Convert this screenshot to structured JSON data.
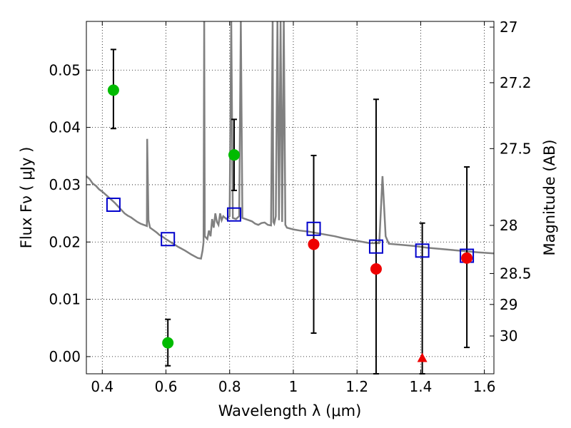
{
  "chart_data": {
    "type": "scatter",
    "title": "",
    "xlabel": "Wavelength  λ (μm)",
    "ylabel": "Flux  Fν  ( μJy )",
    "ylabel_right": "Magnitude (AB)",
    "xlim": [
      0.35,
      1.63
    ],
    "ylim": [
      -0.003,
      0.0585
    ],
    "grid": true,
    "x_ticks": [
      {
        "value": 0.4,
        "label": "0.4"
      },
      {
        "value": 0.6,
        "label": "0.6"
      },
      {
        "value": 0.8,
        "label": "0.8"
      },
      {
        "value": 1.0,
        "label": "1"
      },
      {
        "value": 1.2,
        "label": "1.2"
      },
      {
        "value": 1.4,
        "label": "1.4"
      },
      {
        "value": 1.6,
        "label": "1.6"
      }
    ],
    "y_ticks": [
      {
        "value": 0.0,
        "label": "0.00"
      },
      {
        "value": 0.01,
        "label": "0.01"
      },
      {
        "value": 0.02,
        "label": "0.02"
      },
      {
        "value": 0.03,
        "label": "0.03"
      },
      {
        "value": 0.04,
        "label": "0.04"
      },
      {
        "value": 0.05,
        "label": "0.05"
      }
    ],
    "magnitude_ticks": [
      {
        "label": "27",
        "flux": 0.0575
      },
      {
        "label": "27.2",
        "flux": 0.0478
      },
      {
        "label": "27.5",
        "flux": 0.0363
      },
      {
        "label": "28",
        "flux": 0.0229
      },
      {
        "label": "28.5",
        "flux": 0.0145
      },
      {
        "label": "29",
        "flux": 0.0091
      },
      {
        "label": "30",
        "flux": 0.0036
      }
    ],
    "observed": {
      "color": "#00bb00",
      "points": [
        {
          "x": 0.435,
          "y": 0.0465,
          "err_low": 0.0398,
          "err_high": 0.0536
        },
        {
          "x": 0.606,
          "y": 0.0024,
          "err_low": -0.0016,
          "err_high": 0.0065
        },
        {
          "x": 0.814,
          "y": 0.0352,
          "err_low": 0.029,
          "err_high": 0.0414
        }
      ]
    },
    "nir_observed": {
      "color": "#ee0000",
      "points": [
        {
          "x": 1.064,
          "y": 0.0196,
          "err_low": 0.0041,
          "err_high": 0.0351
        },
        {
          "x": 1.26,
          "y": 0.0153,
          "err_low": -0.003,
          "err_high": 0.0449
        },
        {
          "x": 1.545,
          "y": 0.0172,
          "err_low": 0.0016,
          "err_high": 0.0331
        }
      ]
    },
    "upper_limit": {
      "color": "#ee0000",
      "points": [
        {
          "x": 1.405,
          "y": -0.0002,
          "err_low": -0.003,
          "err_high": 0.0233
        }
      ]
    },
    "model_photometry": {
      "color": "#0000cc",
      "points": [
        {
          "x": 0.435,
          "y": 0.0265
        },
        {
          "x": 0.606,
          "y": 0.0205
        },
        {
          "x": 0.814,
          "y": 0.0248
        },
        {
          "x": 1.064,
          "y": 0.0223
        },
        {
          "x": 1.26,
          "y": 0.0192
        },
        {
          "x": 1.405,
          "y": 0.0185
        },
        {
          "x": 1.545,
          "y": 0.0176
        }
      ]
    },
    "sed_template": {
      "color": "#808080",
      "points": [
        [
          0.35,
          0.0315
        ],
        [
          0.36,
          0.031
        ],
        [
          0.37,
          0.0302
        ],
        [
          0.38,
          0.0298
        ],
        [
          0.39,
          0.0292
        ],
        [
          0.4,
          0.0288
        ],
        [
          0.41,
          0.0283
        ],
        [
          0.42,
          0.0278
        ],
        [
          0.43,
          0.0273
        ],
        [
          0.44,
          0.0268
        ],
        [
          0.45,
          0.0262
        ],
        [
          0.46,
          0.0256
        ],
        [
          0.47,
          0.025
        ],
        [
          0.48,
          0.0246
        ],
        [
          0.49,
          0.0243
        ],
        [
          0.5,
          0.0239
        ],
        [
          0.51,
          0.0235
        ],
        [
          0.52,
          0.0232
        ],
        [
          0.53,
          0.023
        ],
        [
          0.54,
          0.0228
        ],
        [
          0.541,
          0.038
        ],
        [
          0.545,
          0.0238
        ],
        [
          0.55,
          0.0225
        ],
        [
          0.56,
          0.0221
        ],
        [
          0.57,
          0.0217
        ],
        [
          0.58,
          0.0212
        ],
        [
          0.59,
          0.0209
        ],
        [
          0.6,
          0.0205
        ],
        [
          0.62,
          0.0198
        ],
        [
          0.64,
          0.0191
        ],
        [
          0.66,
          0.0185
        ],
        [
          0.68,
          0.0178
        ],
        [
          0.7,
          0.0172
        ],
        [
          0.71,
          0.0171
        ],
        [
          0.715,
          0.0185
        ],
        [
          0.718,
          0.02
        ],
        [
          0.72,
          0.0585
        ],
        [
          0.722,
          0.021
        ],
        [
          0.73,
          0.0205
        ],
        [
          0.735,
          0.022
        ],
        [
          0.74,
          0.021
        ],
        [
          0.745,
          0.024
        ],
        [
          0.75,
          0.0225
        ],
        [
          0.755,
          0.025
        ],
        [
          0.76,
          0.0235
        ],
        [
          0.765,
          0.023
        ],
        [
          0.77,
          0.025
        ],
        [
          0.775,
          0.0238
        ],
        [
          0.78,
          0.0245
        ],
        [
          0.79,
          0.024
        ],
        [
          0.8,
          0.0245
        ],
        [
          0.805,
          0.0585
        ],
        [
          0.81,
          0.0242
        ],
        [
          0.82,
          0.024
        ],
        [
          0.83,
          0.0245
        ],
        [
          0.835,
          0.0585
        ],
        [
          0.84,
          0.0242
        ],
        [
          0.85,
          0.024
        ],
        [
          0.86,
          0.0238
        ],
        [
          0.87,
          0.0236
        ],
        [
          0.88,
          0.0232
        ],
        [
          0.89,
          0.023
        ],
        [
          0.9,
          0.0233
        ],
        [
          0.91,
          0.0234
        ],
        [
          0.92,
          0.023
        ],
        [
          0.93,
          0.0229
        ],
        [
          0.935,
          0.0585
        ],
        [
          0.937,
          0.0235
        ],
        [
          0.94,
          0.0232
        ],
        [
          0.945,
          0.0245
        ],
        [
          0.95,
          0.0585
        ],
        [
          0.955,
          0.0238
        ],
        [
          0.96,
          0.0585
        ],
        [
          0.965,
          0.0235
        ],
        [
          0.97,
          0.0585
        ],
        [
          0.975,
          0.023
        ],
        [
          0.98,
          0.0225
        ],
        [
          1.0,
          0.0222
        ],
        [
          1.02,
          0.022
        ],
        [
          1.05,
          0.0218
        ],
        [
          1.08,
          0.0215
        ],
        [
          1.1,
          0.0213
        ],
        [
          1.13,
          0.021
        ],
        [
          1.16,
          0.0206
        ],
        [
          1.2,
          0.0202
        ],
        [
          1.24,
          0.0198
        ],
        [
          1.27,
          0.0198
        ],
        [
          1.28,
          0.0315
        ],
        [
          1.29,
          0.021
        ],
        [
          1.3,
          0.0197
        ],
        [
          1.34,
          0.0195
        ],
        [
          1.38,
          0.0193
        ],
        [
          1.42,
          0.019
        ],
        [
          1.46,
          0.0188
        ],
        [
          1.5,
          0.0186
        ],
        [
          1.54,
          0.0184
        ],
        [
          1.58,
          0.0182
        ],
        [
          1.63,
          0.018
        ]
      ]
    }
  }
}
